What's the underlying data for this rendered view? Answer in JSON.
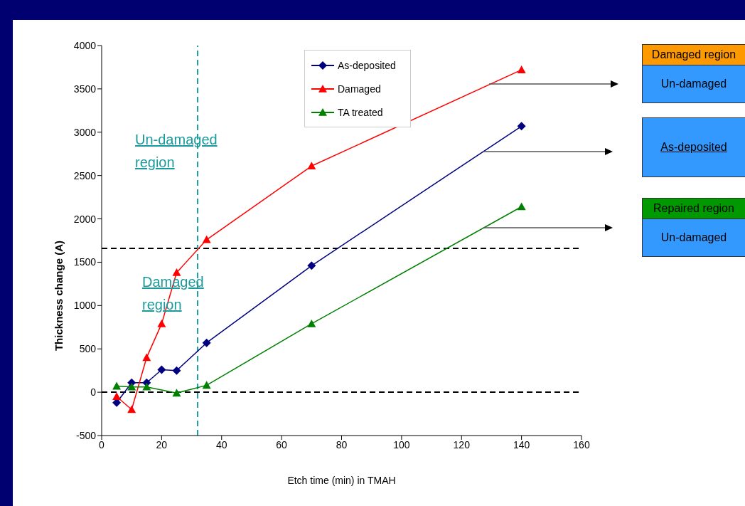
{
  "chart_data": {
    "type": "line",
    "xlabel": "Etch time (min) in TMAH",
    "ylabel": "Thickness change (A)",
    "xlim": [
      0,
      160
    ],
    "xticks": [
      0,
      20,
      40,
      60,
      80,
      100,
      120,
      140,
      160
    ],
    "ylim": [
      -500,
      4000
    ],
    "yticks": [
      -500,
      0,
      500,
      1000,
      1500,
      2000,
      2500,
      3000,
      3500,
      4000
    ],
    "legend": "top",
    "grid": false,
    "line_style": "solid",
    "series": [
      {
        "name": "As-deposited",
        "color": "#000080",
        "marker": "diamond",
        "x": [
          5,
          10,
          15,
          20,
          25,
          35,
          70,
          140
        ],
        "values": [
          -120,
          110,
          110,
          260,
          250,
          570,
          1460,
          3070
        ]
      },
      {
        "name": "Damaged",
        "color": "#ff0000",
        "marker": "triangle",
        "x": [
          5,
          10,
          15,
          20,
          25,
          35,
          70,
          140
        ],
        "values": [
          -50,
          -200,
          400,
          790,
          1380,
          1760,
          2610,
          3720
        ]
      },
      {
        "name": "TA treated",
        "color": "#008000",
        "marker": "triangle",
        "x": [
          5,
          10,
          15,
          25,
          35,
          70,
          140
        ],
        "values": [
          70,
          60,
          60,
          -10,
          80,
          790,
          2140
        ]
      }
    ],
    "ref_lines": [
      {
        "axis": "y",
        "value": 1660,
        "color": "#000000",
        "line_style": "dashed"
      },
      {
        "axis": "y",
        "value": 0,
        "color": "#000000",
        "line_style": "dashed"
      },
      {
        "axis": "x",
        "value": 32,
        "color": "#20a0a0",
        "line_style": "dashed"
      }
    ],
    "annotations": [
      "Un-damaged region",
      "Damaged region",
      "Damaged region",
      "Un-damaged",
      "As-deposited",
      "Repaired region",
      "Un-damaged"
    ]
  }
}
